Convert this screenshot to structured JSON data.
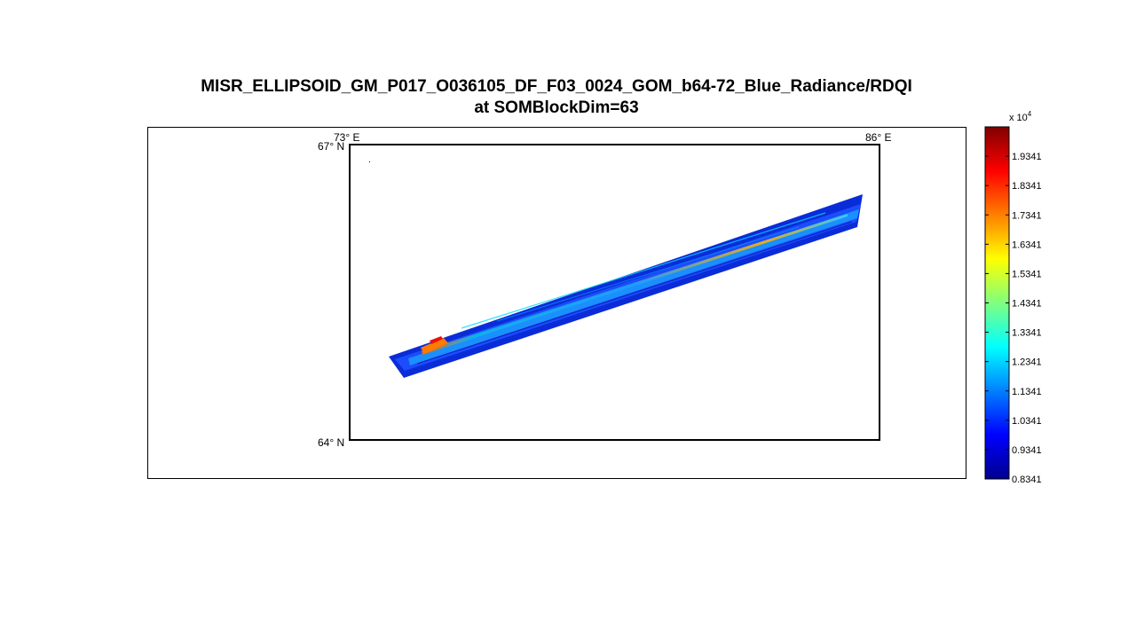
{
  "title_line1": "MISR_ELLIPSOID_GM_P017_O036105_DF_F03_0024_GOM_b64-72_Blue_Radiance/RDQI",
  "title_line2": "at SOMBlockDim=63",
  "chart_data": {
    "type": "heatmap",
    "title": "MISR_ELLIPSOID_GM_P017_O036105_DF_F03_0024_GOM_b64-72_Blue_Radiance/RDQI at SOMBlockDim=63",
    "map": {
      "lon_labels": [
        "73° E",
        "86° E"
      ],
      "lat_labels": [
        "67° N",
        "64° N"
      ],
      "lon_range": [
        73,
        86
      ],
      "lat_range": [
        64,
        67
      ]
    },
    "colorbar": {
      "colormap": "jet",
      "multiplier": "x 10^4",
      "range": [
        0.8341,
        2.0341
      ],
      "tick_labels": [
        "1.9341",
        "1.8341",
        "1.7341",
        "1.6341",
        "1.5341",
        "1.4341",
        "1.3341",
        "1.2341",
        "1.1341",
        "1.0341",
        "0.9341",
        "0.8341"
      ],
      "tick_values": [
        1.9341,
        1.8341,
        1.7341,
        1.6341,
        1.5341,
        1.4341,
        1.3341,
        1.2341,
        1.1341,
        1.0341,
        0.9341,
        0.8341
      ]
    },
    "swath": {
      "start": {
        "lon": 74.0,
        "lat": 64.8
      },
      "end": {
        "lon": 86.0,
        "lat": 66.2
      },
      "dominant_value": 0.93,
      "peak_value": 1.88
    }
  }
}
